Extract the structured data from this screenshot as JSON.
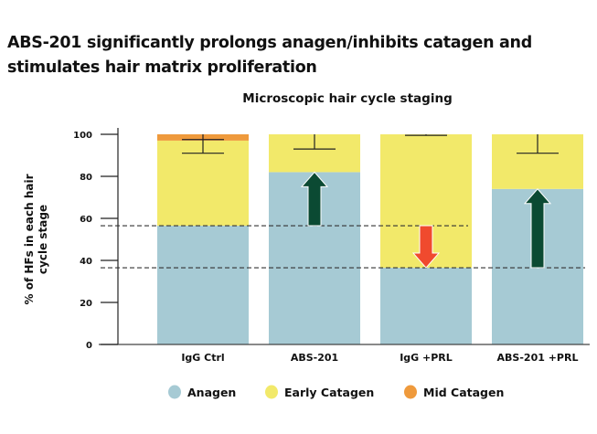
{
  "heading": "ABS-201 significantly prolongs anagen/inhibits catagen and stimulates hair matrix proliferation",
  "chart_data": {
    "type": "bar",
    "stacked": true,
    "title": "Microscopic hair cycle staging",
    "ylabel": "% of HFs in each hair cycle stage",
    "ylabel_lines": [
      "% of HFs in each hair",
      "cycle stage"
    ],
    "ylim": [
      0,
      100
    ],
    "yticks": [
      0,
      20,
      40,
      60,
      80,
      100
    ],
    "categories": [
      "IgG Ctrl",
      "ABS-201",
      "IgG +PRL",
      "ABS-201 +PRL"
    ],
    "series": [
      {
        "name": "Anagen",
        "color": "#a6cad4",
        "values": [
          56.5,
          82,
          36.5,
          74
        ]
      },
      {
        "name": "Early Catagen",
        "color": "#f2e96a",
        "values": [
          40.5,
          18,
          63.5,
          26
        ]
      },
      {
        "name": "Mid Catagen",
        "color": "#ef9a3c",
        "values": [
          3,
          0,
          0,
          0
        ]
      }
    ],
    "error_bars_low": [
      91,
      93,
      99.5,
      91
    ],
    "error_bars_high": [
      97.5,
      100,
      100,
      100
    ],
    "reference_lines": [
      56.5,
      36.5
    ],
    "arrows": [
      {
        "category": "ABS-201",
        "direction": "up",
        "from": 56.5,
        "to": 82,
        "color": "#0b4a33"
      },
      {
        "category": "IgG +PRL",
        "direction": "down",
        "from": 56.5,
        "to": 36.5,
        "color": "#f04a2e"
      },
      {
        "category": "ABS-201 +PRL",
        "direction": "up",
        "from": 36.5,
        "to": 74,
        "color": "#0b4a33"
      }
    ],
    "legend": "bottom",
    "grid": false
  }
}
